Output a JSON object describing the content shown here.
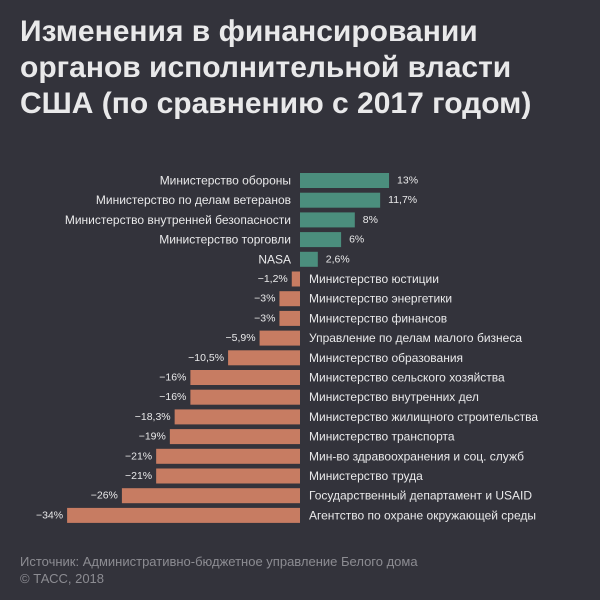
{
  "title_lines": [
    "Изменения в финансировании",
    "органов исполнительной власти",
    "США (по сравнению с 2017 годом)"
  ],
  "footer": {
    "source": "Источник: Административно-бюджетное управление Белого дома",
    "copyright": "© ТАСС, 2018"
  },
  "colors": {
    "background": "#33333b",
    "positive": "#4b8e7d",
    "negative": "#c77c62",
    "text": "#e9e9ea",
    "muted": "#8c8c92"
  },
  "chart_data": {
    "type": "bar",
    "orientation": "horizontal",
    "title": "Изменения в финансировании органов исполнительной власти США (по сравнению с 2017 годом)",
    "xlabel": "",
    "ylabel": "",
    "unit": "%",
    "xlim": [
      -34,
      13
    ],
    "grid": false,
    "categories": [
      "Министерство обороны",
      "Министерство по делам ветеранов",
      "Министерство внутренней безопасности",
      "Министерство торговли",
      "NASA",
      "Министерство юстиции",
      "Министерство энергетики",
      "Министерство финансов",
      "Управление по делам малого бизнеса",
      "Министерство образования",
      "Министерство сельского хозяйства",
      "Министерство внутренних дел",
      "Министерство жилищного строительства",
      "Министерство транспорта",
      "Мин-во здравоохранения и соц. служб",
      "Министерство труда",
      "Государственный департамент и USAID",
      "Агентство по охране окружающей среды"
    ],
    "values": [
      13,
      11.7,
      8,
      6,
      2.6,
      -1.2,
      -3,
      -3,
      -5.9,
      -10.5,
      -16,
      -16,
      -18.3,
      -19,
      -21,
      -21,
      -26,
      -34
    ],
    "value_labels": [
      "13%",
      "11,7%",
      "8%",
      "6%",
      "2,6%",
      "−1,2%",
      "−3%",
      "−3%",
      "−5,9%",
      "−10,5%",
      "−16%",
      "−16%",
      "−18,3%",
      "−19%",
      "−21%",
      "−21%",
      "−26%",
      "−34%"
    ]
  }
}
